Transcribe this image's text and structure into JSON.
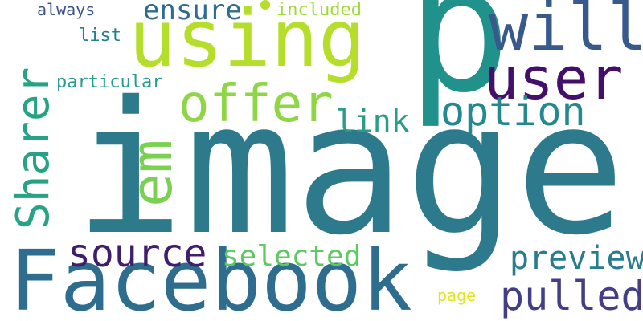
{
  "words": [
    {
      "id": "image",
      "text": "image",
      "color": "#2c7a8c"
    },
    {
      "id": "p",
      "text": "p",
      "color": "#21918c"
    },
    {
      "id": "using",
      "text": "using",
      "color": "#b5de2b"
    },
    {
      "id": "facebook",
      "text": "Facebook",
      "color": "#2e6d8e"
    },
    {
      "id": "will",
      "text": "will",
      "color": "#38598c"
    },
    {
      "id": "user",
      "text": "user",
      "color": "#440f6b"
    },
    {
      "id": "offer",
      "text": "offer",
      "color": "#8ed645"
    },
    {
      "id": "option",
      "text": "option",
      "color": "#23898e"
    },
    {
      "id": "em",
      "text": "em",
      "color": "#7ad151"
    },
    {
      "id": "sharer",
      "text": "Sharer",
      "color": "#26a384"
    },
    {
      "id": "source",
      "text": "source",
      "color": "#3f1f6b"
    },
    {
      "id": "pulled",
      "text": "pulled",
      "color": "#433e85"
    },
    {
      "id": "preview",
      "text": "preview",
      "color": "#287c8e"
    },
    {
      "id": "selected",
      "text": "selected",
      "color": "#5ec962"
    },
    {
      "id": "ensure",
      "text": "ensure",
      "color": "#2f6c8e"
    },
    {
      "id": "link",
      "text": "link",
      "color": "#2a9c8a"
    },
    {
      "id": "particular",
      "text": "particular",
      "color": "#2a9c8a"
    },
    {
      "id": "always",
      "text": "always",
      "color": "#3b528b"
    },
    {
      "id": "included",
      "text": "included",
      "color": "#a0da39"
    },
    {
      "id": "list",
      "text": "list",
      "color": "#277f8e"
    },
    {
      "id": "page",
      "text": "page",
      "color": "#e4e419"
    }
  ],
  "dot_color": "#b5de2b"
}
